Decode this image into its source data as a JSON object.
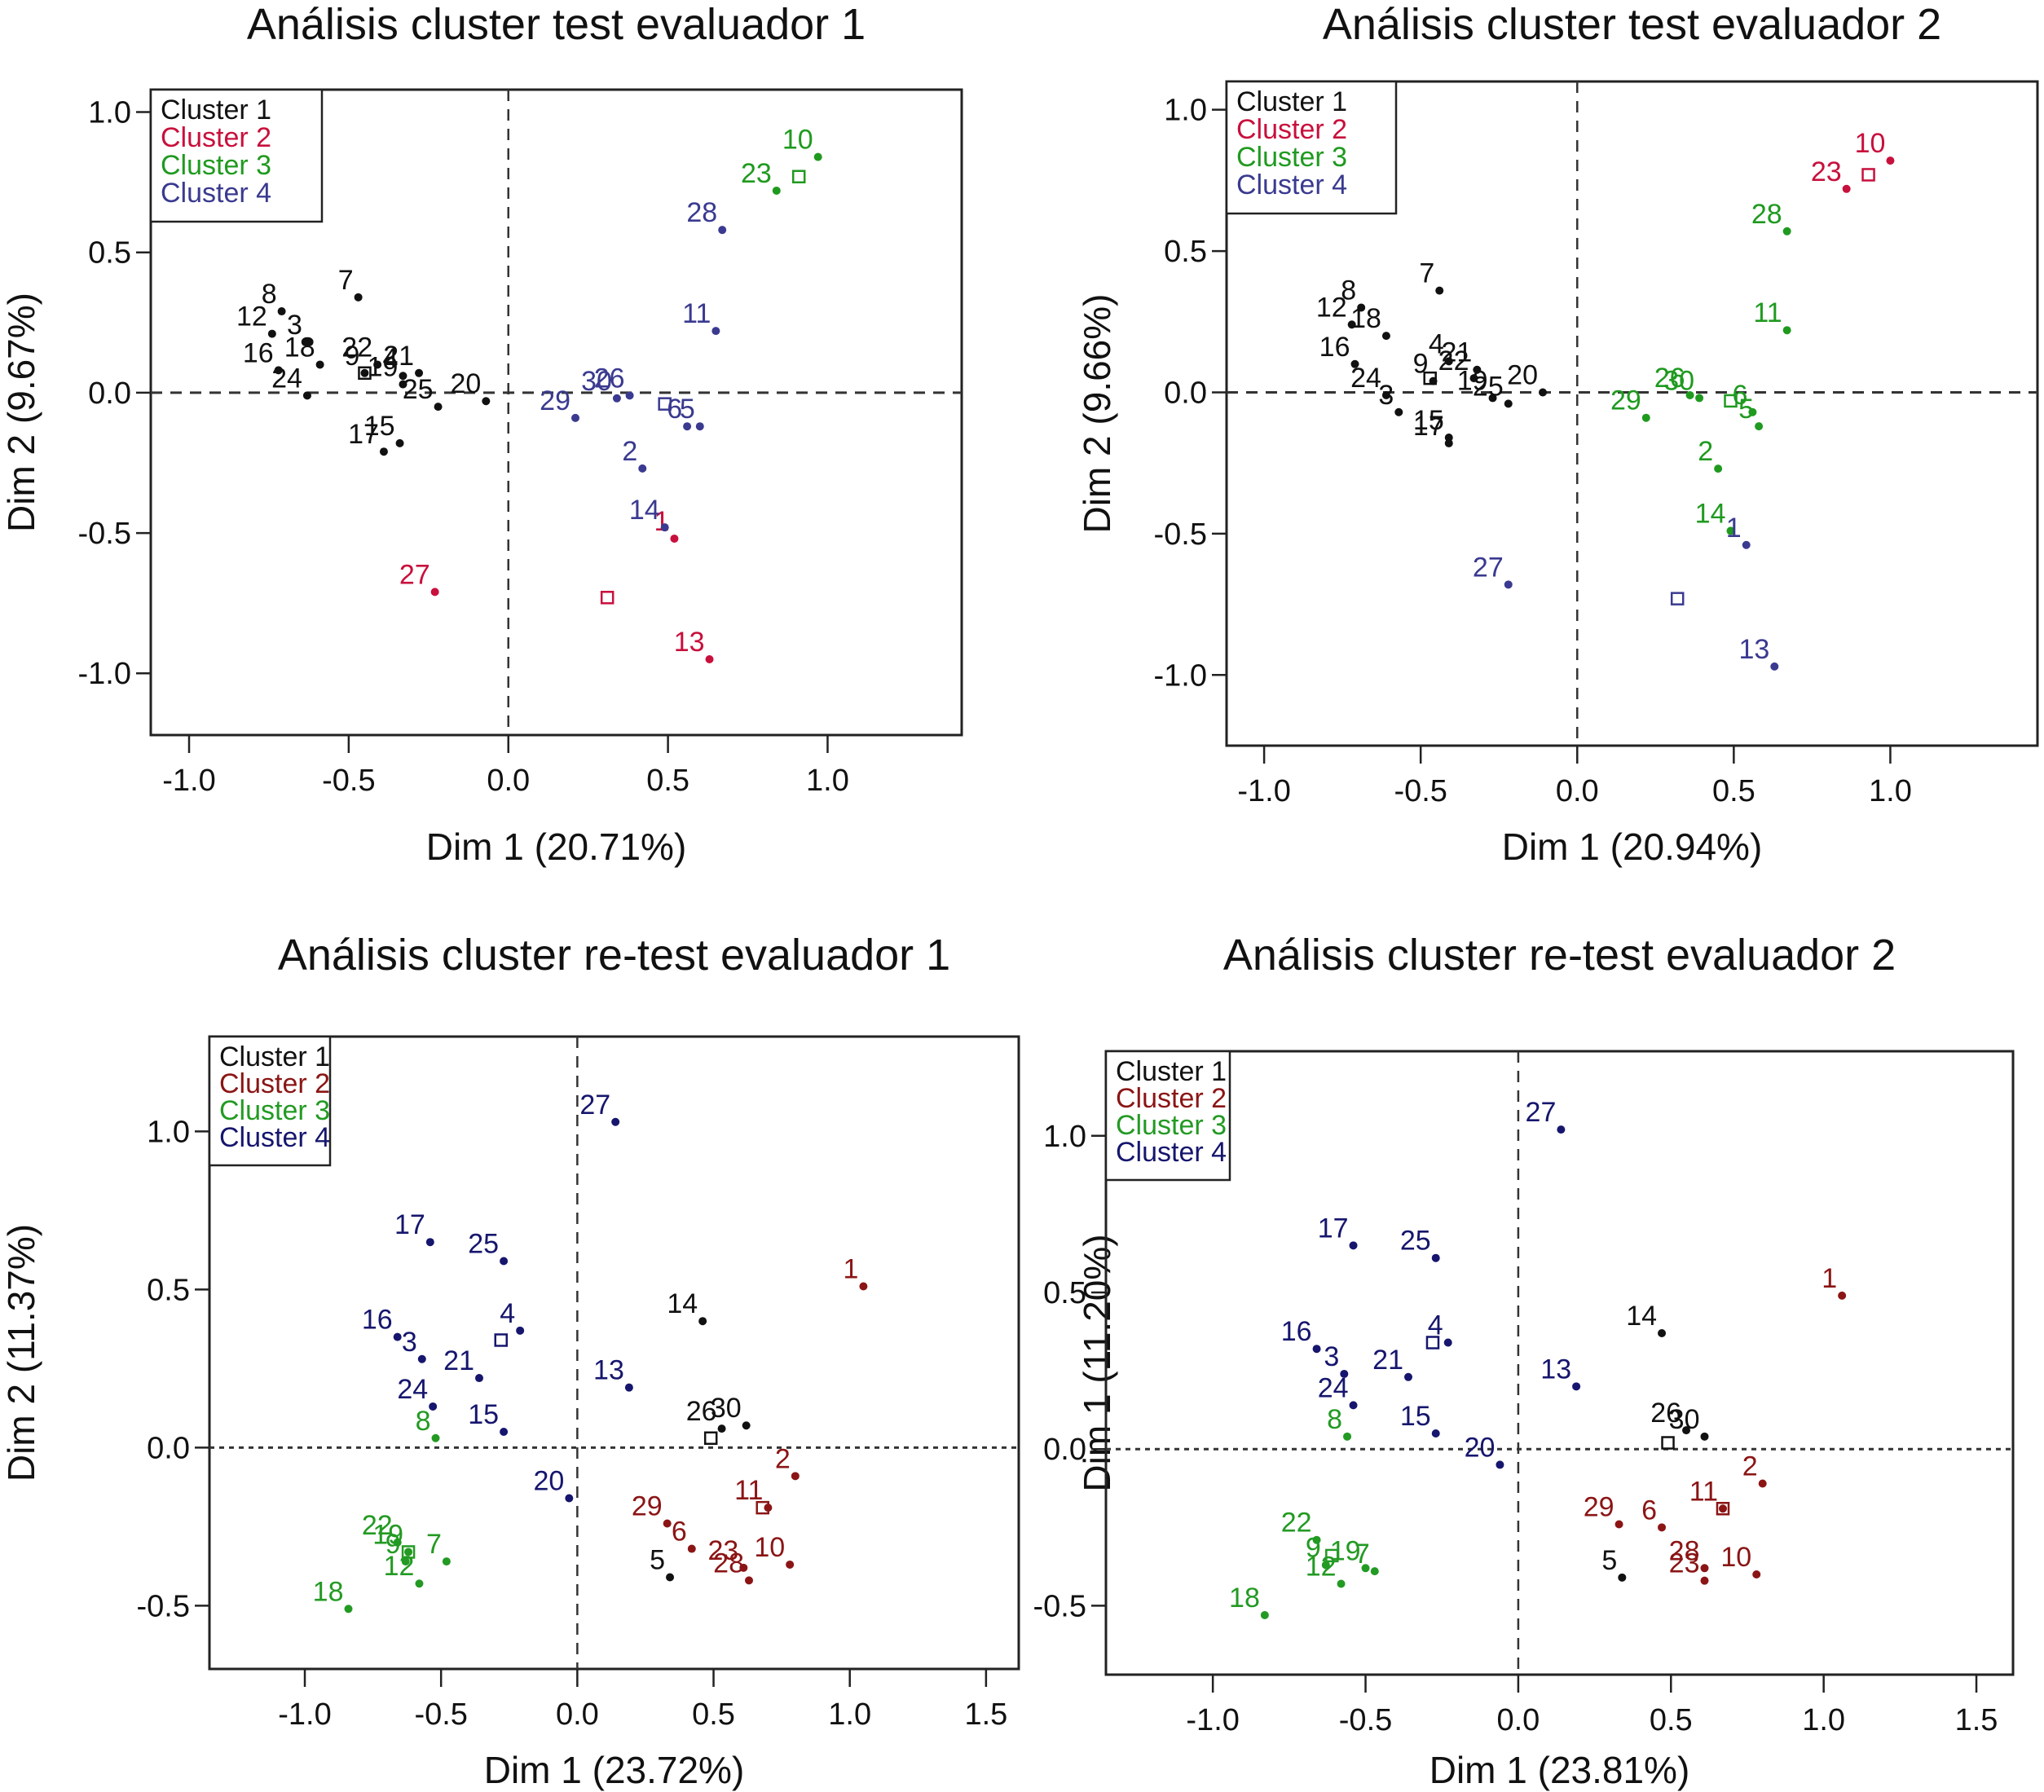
{
  "colors": {
    "cluster_top": [
      "#111111",
      "#c8103c",
      "#1f9a1f",
      "#3a3a90"
    ],
    "cluster_bottom": [
      "#111111",
      "#8b1515",
      "#239a23",
      "#16166e"
    ]
  },
  "chart_data": [
    {
      "type": "scatter",
      "title": "Análisis cluster test evaluador 1",
      "xlabel": "Dim 1 (20.71%)",
      "ylabel": "Dim 2 (9.67%)",
      "xlim": [
        -1.12,
        1.42
      ],
      "ylim": [
        -1.22,
        1.08
      ],
      "xticks": [
        "-1.0",
        "-0.5",
        "0.0",
        "0.5",
        "1.0"
      ],
      "yticks": [
        "-1.0",
        "-0.5",
        "0.0",
        "0.5",
        "1.0"
      ],
      "legend": {
        "position": "top-left",
        "entries": [
          "Cluster 1",
          "Cluster 2",
          "Cluster 3",
          "Cluster 4"
        ]
      },
      "reference_lines": {
        "x": 0,
        "y": 0,
        "style": "dashed"
      },
      "points": [
        {
          "id": "8",
          "x": -0.71,
          "y": 0.29,
          "cluster": 1
        },
        {
          "id": "12",
          "x": -0.74,
          "y": 0.21,
          "cluster": 1
        },
        {
          "id": "7",
          "x": -0.47,
          "y": 0.34,
          "cluster": 1
        },
        {
          "id": "18",
          "x": -0.59,
          "y": 0.1,
          "cluster": 1
        },
        {
          "id": "3",
          "x": -0.63,
          "y": 0.18,
          "cluster": 1
        },
        {
          "id": "16",
          "x": -0.72,
          "y": 0.08,
          "cluster": 1
        },
        {
          "id": "24",
          "x": -0.63,
          "y": -0.01,
          "cluster": 1
        },
        {
          "id": "22",
          "x": -0.41,
          "y": 0.1,
          "cluster": 1
        },
        {
          "id": "9",
          "x": -0.45,
          "y": 0.07,
          "cluster": 1
        },
        {
          "id": "19",
          "x": -0.33,
          "y": 0.03,
          "cluster": 1
        },
        {
          "id": "4",
          "x": -0.33,
          "y": 0.06,
          "cluster": 1
        },
        {
          "id": "21",
          "x": -0.28,
          "y": 0.07,
          "cluster": 1
        },
        {
          "id": "25",
          "x": -0.22,
          "y": -0.05,
          "cluster": 1
        },
        {
          "id": "20",
          "x": -0.07,
          "y": -0.03,
          "cluster": 1
        },
        {
          "id": "17",
          "x": -0.39,
          "y": -0.21,
          "cluster": 1
        },
        {
          "id": "15",
          "x": -0.34,
          "y": -0.18,
          "cluster": 1
        },
        {
          "id": "27",
          "x": -0.23,
          "y": -0.71,
          "cluster": 2
        },
        {
          "id": "1",
          "x": 0.52,
          "y": -0.52,
          "cluster": 2
        },
        {
          "id": "13",
          "x": 0.63,
          "y": -0.95,
          "cluster": 2
        },
        {
          "id": "10",
          "x": 0.97,
          "y": 0.84,
          "cluster": 3
        },
        {
          "id": "23",
          "x": 0.84,
          "y": 0.72,
          "cluster": 3
        },
        {
          "id": "28",
          "x": 0.67,
          "y": 0.58,
          "cluster": 4
        },
        {
          "id": "11",
          "x": 0.65,
          "y": 0.22,
          "cluster": 4
        },
        {
          "id": "29",
          "x": 0.21,
          "y": -0.09,
          "cluster": 4
        },
        {
          "id": "26",
          "x": 0.38,
          "y": -0.01,
          "cluster": 4
        },
        {
          "id": "30",
          "x": 0.34,
          "y": -0.02,
          "cluster": 4
        },
        {
          "id": "6",
          "x": 0.56,
          "y": -0.12,
          "cluster": 4
        },
        {
          "id": "5",
          "x": 0.6,
          "y": -0.12,
          "cluster": 4
        },
        {
          "id": "2",
          "x": 0.42,
          "y": -0.27,
          "cluster": 4
        },
        {
          "id": "14",
          "x": 0.49,
          "y": -0.48,
          "cluster": 4
        }
      ],
      "centroids": [
        {
          "cluster": 1,
          "x": -0.45,
          "y": 0.07
        },
        {
          "cluster": 2,
          "x": 0.31,
          "y": -0.73
        },
        {
          "cluster": 3,
          "x": 0.91,
          "y": 0.77
        },
        {
          "cluster": 4,
          "x": 0.49,
          "y": -0.04
        }
      ]
    },
    {
      "type": "scatter",
      "title": "Análisis cluster test evaluador 2",
      "xlabel": "Dim 1 (20.94%)",
      "ylabel": "Dim 2 (9.66%)",
      "xlim": [
        -1.12,
        1.47
      ],
      "ylim": [
        -1.25,
        1.1
      ],
      "xticks": [
        "-1.0",
        "-0.5",
        "0.0",
        "0.5",
        "1.0"
      ],
      "yticks": [
        "-1.0",
        "-0.5",
        "0.0",
        "0.5",
        "1.0"
      ],
      "legend": {
        "position": "top-left",
        "entries": [
          "Cluster 1",
          "Cluster 2",
          "Cluster 3",
          "Cluster 4"
        ]
      },
      "reference_lines": {
        "x": 0,
        "y": 0,
        "style": "dashed"
      },
      "points": [
        {
          "id": "7",
          "x": -0.44,
          "y": 0.36,
          "cluster": 1
        },
        {
          "id": "8",
          "x": -0.69,
          "y": 0.3,
          "cluster": 1
        },
        {
          "id": "12",
          "x": -0.72,
          "y": 0.24,
          "cluster": 1
        },
        {
          "id": "18",
          "x": -0.61,
          "y": 0.2,
          "cluster": 1
        },
        {
          "id": "16",
          "x": -0.71,
          "y": 0.1,
          "cluster": 1
        },
        {
          "id": "4",
          "x": -0.41,
          "y": 0.11,
          "cluster": 1
        },
        {
          "id": "21",
          "x": -0.32,
          "y": 0.08,
          "cluster": 1
        },
        {
          "id": "24",
          "x": -0.61,
          "y": -0.01,
          "cluster": 1
        },
        {
          "id": "9",
          "x": -0.46,
          "y": 0.04,
          "cluster": 1
        },
        {
          "id": "22",
          "x": -0.33,
          "y": 0.05,
          "cluster": 1
        },
        {
          "id": "19",
          "x": -0.27,
          "y": -0.02,
          "cluster": 1
        },
        {
          "id": "20",
          "x": -0.11,
          "y": 0.0,
          "cluster": 1
        },
        {
          "id": "3",
          "x": -0.57,
          "y": -0.07,
          "cluster": 1
        },
        {
          "id": "25",
          "x": -0.22,
          "y": -0.04,
          "cluster": 1
        },
        {
          "id": "15",
          "x": -0.41,
          "y": -0.16,
          "cluster": 1
        },
        {
          "id": "17",
          "x": -0.41,
          "y": -0.18,
          "cluster": 1
        },
        {
          "id": "10",
          "x": 1.0,
          "y": 0.82,
          "cluster": 2
        },
        {
          "id": "23",
          "x": 0.86,
          "y": 0.72,
          "cluster": 2
        },
        {
          "id": "28",
          "x": 0.67,
          "y": 0.57,
          "cluster": 3
        },
        {
          "id": "11",
          "x": 0.67,
          "y": 0.22,
          "cluster": 3
        },
        {
          "id": "29",
          "x": 0.22,
          "y": -0.09,
          "cluster": 3
        },
        {
          "id": "26",
          "x": 0.36,
          "y": -0.01,
          "cluster": 3
        },
        {
          "id": "30",
          "x": 0.39,
          "y": -0.02,
          "cluster": 3
        },
        {
          "id": "6",
          "x": 0.56,
          "y": -0.07,
          "cluster": 3
        },
        {
          "id": "5",
          "x": 0.58,
          "y": -0.12,
          "cluster": 3
        },
        {
          "id": "2",
          "x": 0.45,
          "y": -0.27,
          "cluster": 3
        },
        {
          "id": "14",
          "x": 0.49,
          "y": -0.49,
          "cluster": 3
        },
        {
          "id": "27",
          "x": -0.22,
          "y": -0.68,
          "cluster": 4
        },
        {
          "id": "1",
          "x": 0.54,
          "y": -0.54,
          "cluster": 4
        },
        {
          "id": "13",
          "x": 0.63,
          "y": -0.97,
          "cluster": 4
        }
      ],
      "centroids": [
        {
          "cluster": 1,
          "x": -0.47,
          "y": 0.05
        },
        {
          "cluster": 2,
          "x": 0.93,
          "y": 0.77
        },
        {
          "cluster": 3,
          "x": 0.49,
          "y": -0.03
        },
        {
          "cluster": 4,
          "x": 0.32,
          "y": -0.73
        }
      ]
    },
    {
      "type": "scatter",
      "title": "Análisis cluster re-test evaluador 1",
      "xlabel": "Dim 1 (23.72%)",
      "ylabel": "Dim 2 (11.37%)",
      "xlim": [
        -1.35,
        1.62
      ],
      "ylim": [
        -0.7,
        1.3
      ],
      "xticks": [
        "-1.0",
        "-0.5",
        "0.0",
        "0.5",
        "1.0",
        "1.5"
      ],
      "yticks": [
        "-0.5",
        "0.0",
        "0.5",
        "1.0"
      ],
      "legend": {
        "position": "top-left",
        "entries": [
          "Cluster 1",
          "Cluster 2",
          "Cluster 3",
          "Cluster 4"
        ]
      },
      "reference_lines": {
        "x": 0,
        "y": 0,
        "style": "dashed"
      },
      "points": [
        {
          "id": "14",
          "x": 0.46,
          "y": 0.4,
          "cluster": 1
        },
        {
          "id": "26",
          "x": 0.53,
          "y": 0.06,
          "cluster": 1
        },
        {
          "id": "30",
          "x": 0.62,
          "y": 0.07,
          "cluster": 1
        },
        {
          "id": "5",
          "x": 0.34,
          "y": -0.41,
          "cluster": 1
        },
        {
          "id": "1",
          "x": 1.05,
          "y": 0.51,
          "cluster": 2
        },
        {
          "id": "2",
          "x": 0.8,
          "y": -0.09,
          "cluster": 2
        },
        {
          "id": "11",
          "x": 0.7,
          "y": -0.19,
          "cluster": 2
        },
        {
          "id": "29",
          "x": 0.33,
          "y": -0.24,
          "cluster": 2
        },
        {
          "id": "6",
          "x": 0.42,
          "y": -0.32,
          "cluster": 2
        },
        {
          "id": "23",
          "x": 0.61,
          "y": -0.38,
          "cluster": 2
        },
        {
          "id": "28",
          "x": 0.63,
          "y": -0.42,
          "cluster": 2
        },
        {
          "id": "10",
          "x": 0.78,
          "y": -0.37,
          "cluster": 2
        },
        {
          "id": "8",
          "x": -0.52,
          "y": 0.03,
          "cluster": 3
        },
        {
          "id": "22",
          "x": -0.66,
          "y": -0.3,
          "cluster": 3
        },
        {
          "id": "19",
          "x": -0.62,
          "y": -0.33,
          "cluster": 3
        },
        {
          "id": "9",
          "x": -0.63,
          "y": -0.36,
          "cluster": 3
        },
        {
          "id": "7",
          "x": -0.48,
          "y": -0.36,
          "cluster": 3
        },
        {
          "id": "12",
          "x": -0.58,
          "y": -0.43,
          "cluster": 3
        },
        {
          "id": "18",
          "x": -0.84,
          "y": -0.51,
          "cluster": 3
        },
        {
          "id": "27",
          "x": 0.14,
          "y": 1.03,
          "cluster": 4
        },
        {
          "id": "17",
          "x": -0.54,
          "y": 0.65,
          "cluster": 4
        },
        {
          "id": "25",
          "x": -0.27,
          "y": 0.59,
          "cluster": 4
        },
        {
          "id": "4",
          "x": -0.21,
          "y": 0.37,
          "cluster": 4
        },
        {
          "id": "16",
          "x": -0.66,
          "y": 0.35,
          "cluster": 4
        },
        {
          "id": "3",
          "x": -0.57,
          "y": 0.28,
          "cluster": 4
        },
        {
          "id": "21",
          "x": -0.36,
          "y": 0.22,
          "cluster": 4
        },
        {
          "id": "13",
          "x": 0.19,
          "y": 0.19,
          "cluster": 4
        },
        {
          "id": "24",
          "x": -0.53,
          "y": 0.13,
          "cluster": 4
        },
        {
          "id": "15",
          "x": -0.27,
          "y": 0.05,
          "cluster": 4
        },
        {
          "id": "20",
          "x": -0.03,
          "y": -0.16,
          "cluster": 4
        }
      ],
      "centroids": [
        {
          "cluster": 1,
          "x": 0.49,
          "y": 0.03
        },
        {
          "cluster": 2,
          "x": 0.68,
          "y": -0.19
        },
        {
          "cluster": 3,
          "x": -0.62,
          "y": -0.33
        },
        {
          "cluster": 4,
          "x": -0.28,
          "y": 0.34
        }
      ]
    },
    {
      "type": "scatter",
      "title": "Análisis cluster re-test evaluador 2",
      "xlabel": "Dim 1 (23.81%)",
      "ylabel": "Dim 1 (11.20%)",
      "xlim": [
        -1.35,
        1.62
      ],
      "ylim": [
        -0.72,
        1.27
      ],
      "xticks": [
        "-1.0",
        "-0.5",
        "0.0",
        "0.5",
        "1.0",
        "1.5"
      ],
      "yticks": [
        "-0.5",
        "0.0",
        "0.5",
        "1.0"
      ],
      "legend": {
        "position": "top-left",
        "entries": [
          "Cluster 1",
          "Cluster 2",
          "Cluster 3",
          "Cluster 4"
        ]
      },
      "reference_lines": {
        "x": 0,
        "y": 0,
        "style": "dashed"
      },
      "points": [
        {
          "id": "14",
          "x": 0.47,
          "y": 0.37,
          "cluster": 1
        },
        {
          "id": "26",
          "x": 0.55,
          "y": 0.06,
          "cluster": 1
        },
        {
          "id": "30",
          "x": 0.61,
          "y": 0.04,
          "cluster": 1
        },
        {
          "id": "5",
          "x": 0.34,
          "y": -0.41,
          "cluster": 1
        },
        {
          "id": "1",
          "x": 1.06,
          "y": 0.49,
          "cluster": 2
        },
        {
          "id": "2",
          "x": 0.8,
          "y": -0.11,
          "cluster": 2
        },
        {
          "id": "11",
          "x": 0.67,
          "y": -0.19,
          "cluster": 2
        },
        {
          "id": "29",
          "x": 0.33,
          "y": -0.24,
          "cluster": 2
        },
        {
          "id": "6",
          "x": 0.47,
          "y": -0.25,
          "cluster": 2
        },
        {
          "id": "28",
          "x": 0.61,
          "y": -0.38,
          "cluster": 2
        },
        {
          "id": "23",
          "x": 0.61,
          "y": -0.42,
          "cluster": 2
        },
        {
          "id": "10",
          "x": 0.78,
          "y": -0.4,
          "cluster": 2
        },
        {
          "id": "8",
          "x": -0.56,
          "y": 0.04,
          "cluster": 3
        },
        {
          "id": "22",
          "x": -0.66,
          "y": -0.29,
          "cluster": 3
        },
        {
          "id": "9",
          "x": -0.63,
          "y": -0.37,
          "cluster": 3
        },
        {
          "id": "19",
          "x": -0.5,
          "y": -0.38,
          "cluster": 3
        },
        {
          "id": "12",
          "x": -0.58,
          "y": -0.43,
          "cluster": 3
        },
        {
          "id": "7",
          "x": -0.47,
          "y": -0.39,
          "cluster": 3
        },
        {
          "id": "18",
          "x": -0.83,
          "y": -0.53,
          "cluster": 3
        },
        {
          "id": "27",
          "x": 0.14,
          "y": 1.02,
          "cluster": 4
        },
        {
          "id": "17",
          "x": -0.54,
          "y": 0.65,
          "cluster": 4
        },
        {
          "id": "25",
          "x": -0.27,
          "y": 0.61,
          "cluster": 4
        },
        {
          "id": "4",
          "x": -0.23,
          "y": 0.34,
          "cluster": 4
        },
        {
          "id": "16",
          "x": -0.66,
          "y": 0.32,
          "cluster": 4
        },
        {
          "id": "3",
          "x": -0.57,
          "y": 0.24,
          "cluster": 4
        },
        {
          "id": "21",
          "x": -0.36,
          "y": 0.23,
          "cluster": 4
        },
        {
          "id": "13",
          "x": 0.19,
          "y": 0.2,
          "cluster": 4
        },
        {
          "id": "24",
          "x": -0.54,
          "y": 0.14,
          "cluster": 4
        },
        {
          "id": "15",
          "x": -0.27,
          "y": 0.05,
          "cluster": 4
        },
        {
          "id": "20",
          "x": -0.06,
          "y": -0.05,
          "cluster": 4
        }
      ],
      "centroids": [
        {
          "cluster": 1,
          "x": 0.49,
          "y": 0.02
        },
        {
          "cluster": 2,
          "x": 0.67,
          "y": -0.19
        },
        {
          "cluster": 3,
          "x": -0.61,
          "y": -0.34
        },
        {
          "cluster": 4,
          "x": -0.28,
          "y": 0.34
        }
      ]
    }
  ]
}
